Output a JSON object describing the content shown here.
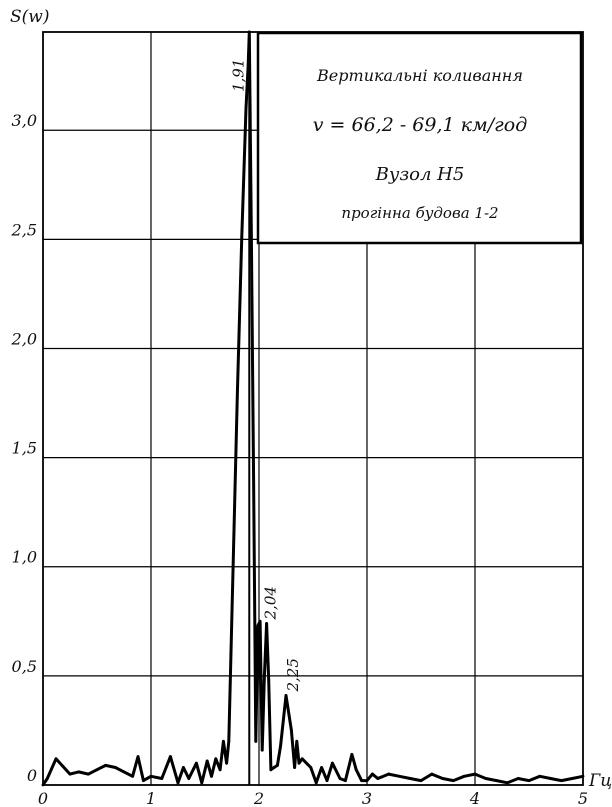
{
  "chart_data": {
    "type": "line",
    "ylabel": "S(w)",
    "xlabel": "Гц",
    "xlim": [
      0,
      5
    ],
    "ylim": [
      0,
      3.45
    ],
    "grid": true,
    "x_ticks": [
      "0",
      "1",
      "2",
      "3",
      "4",
      "5"
    ],
    "y_ticks": [
      "0",
      "0,5",
      "1,0",
      "1,5",
      "2,0",
      "2,5",
      "3,0"
    ],
    "legend": {
      "placement": "top-right",
      "lines": [
        "Вертикальні коливання",
        "v = 66,2 - 69,1 км/год",
        "Вузол Н5",
        "прогінна будова 1-2"
      ]
    },
    "annotations": [
      {
        "text": "1,91",
        "x": 1.91,
        "y": 3.45
      },
      {
        "text": "2,04",
        "x": 2.04,
        "y": 0.74
      },
      {
        "text": "2,25",
        "x": 2.25,
        "y": 0.41
      }
    ],
    "series": [
      {
        "x": [
          0.0,
          0.04,
          0.12,
          0.25,
          0.33,
          0.42,
          0.5,
          0.58,
          0.67,
          0.75,
          0.83,
          0.88,
          0.93,
          1.0,
          1.1,
          1.18,
          1.25,
          1.3,
          1.35,
          1.42,
          1.47,
          1.52,
          1.56,
          1.6,
          1.64,
          1.67,
          1.7,
          1.72,
          1.76,
          1.8,
          1.84,
          1.88,
          1.9,
          1.91,
          1.93,
          1.95,
          1.97,
          1.99,
          2.01,
          2.03,
          2.05,
          2.07,
          2.09,
          2.11,
          2.14,
          2.17,
          2.2,
          2.25,
          2.3,
          2.33,
          2.35,
          2.37,
          2.4,
          2.44,
          2.48,
          2.53,
          2.58,
          2.63,
          2.68,
          2.75,
          2.8,
          2.86,
          2.9,
          2.95,
          3.0,
          3.05,
          3.1,
          3.2,
          3.3,
          3.4,
          3.5,
          3.6,
          3.7,
          3.8,
          3.9,
          4.0,
          4.1,
          4.2,
          4.3,
          4.4,
          4.5,
          4.6,
          4.7,
          4.8,
          4.9,
          5.0
        ],
        "y": [
          0.0,
          0.03,
          0.12,
          0.05,
          0.06,
          0.05,
          0.07,
          0.09,
          0.08,
          0.06,
          0.04,
          0.13,
          0.02,
          0.04,
          0.03,
          0.13,
          0.01,
          0.08,
          0.03,
          0.1,
          0.01,
          0.11,
          0.04,
          0.12,
          0.07,
          0.2,
          0.1,
          0.2,
          1.0,
          1.8,
          2.5,
          3.1,
          3.3,
          3.45,
          2.5,
          1.4,
          0.2,
          0.73,
          0.75,
          0.16,
          0.5,
          0.74,
          0.48,
          0.07,
          0.08,
          0.09,
          0.18,
          0.41,
          0.25,
          0.08,
          0.2,
          0.1,
          0.12,
          0.1,
          0.08,
          0.01,
          0.08,
          0.02,
          0.1,
          0.03,
          0.02,
          0.14,
          0.07,
          0.02,
          0.02,
          0.05,
          0.03,
          0.05,
          0.04,
          0.03,
          0.02,
          0.05,
          0.03,
          0.02,
          0.04,
          0.05,
          0.03,
          0.02,
          0.01,
          0.03,
          0.02,
          0.04,
          0.03,
          0.02,
          0.03,
          0.04
        ]
      }
    ]
  }
}
